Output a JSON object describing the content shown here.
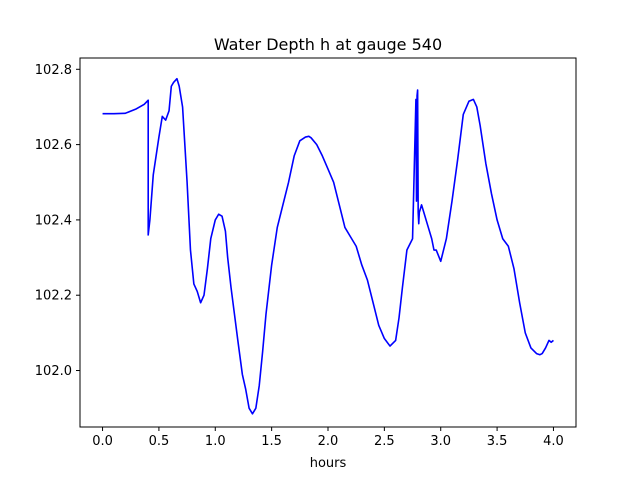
{
  "chart_data": {
    "type": "line",
    "title": "Water Depth h at gauge 540",
    "xlabel": "hours",
    "ylabel": "",
    "xlim": [
      -0.2,
      4.2
    ],
    "ylim": [
      101.85,
      102.83
    ],
    "xticks": [
      0.0,
      0.5,
      1.0,
      1.5,
      2.0,
      2.5,
      3.0,
      3.5,
      4.0
    ],
    "xtick_labels": [
      "0.0",
      "0.5",
      "1.0",
      "1.5",
      "2.0",
      "2.5",
      "3.0",
      "3.5",
      "4.0"
    ],
    "yticks": [
      102.0,
      102.2,
      102.4,
      102.6,
      102.8
    ],
    "ytick_labels": [
      "102.0",
      "102.2",
      "102.4",
      "102.6",
      "102.8"
    ],
    "grid": false,
    "line_color": "#0000ff",
    "series": [
      {
        "name": "",
        "x": [
          0.0,
          0.1,
          0.2,
          0.3,
          0.37,
          0.405,
          0.405,
          0.42,
          0.45,
          0.5,
          0.53,
          0.56,
          0.59,
          0.61,
          0.63,
          0.66,
          0.68,
          0.71,
          0.75,
          0.78,
          0.81,
          0.84,
          0.87,
          0.9,
          0.93,
          0.96,
          1.0,
          1.03,
          1.06,
          1.09,
          1.11,
          1.14,
          1.17,
          1.2,
          1.24,
          1.27,
          1.3,
          1.33,
          1.36,
          1.39,
          1.42,
          1.45,
          1.5,
          1.55,
          1.6,
          1.65,
          1.7,
          1.75,
          1.8,
          1.83,
          1.85,
          1.9,
          1.95,
          2.0,
          2.05,
          2.1,
          2.15,
          2.2,
          2.25,
          2.3,
          2.35,
          2.4,
          2.45,
          2.5,
          2.55,
          2.6,
          2.63,
          2.66,
          2.7,
          2.75,
          2.78,
          2.785,
          2.79,
          2.795,
          2.8,
          2.805,
          2.81,
          2.83,
          2.85,
          2.88,
          2.92,
          2.94,
          2.96,
          3.0,
          3.05,
          3.1,
          3.15,
          3.2,
          3.25,
          3.29,
          3.32,
          3.35,
          3.4,
          3.45,
          3.5,
          3.55,
          3.6,
          3.65,
          3.7,
          3.75,
          3.8,
          3.85,
          3.88,
          3.9,
          3.93,
          3.96,
          3.98,
          4.0
        ],
        "y": [
          102.682,
          102.682,
          102.683,
          102.695,
          102.707,
          102.718,
          102.36,
          102.4,
          102.52,
          102.62,
          102.675,
          102.665,
          102.69,
          102.755,
          102.765,
          102.775,
          102.755,
          102.7,
          102.5,
          102.32,
          102.23,
          102.21,
          102.18,
          102.2,
          102.27,
          102.35,
          102.4,
          102.415,
          102.41,
          102.37,
          102.3,
          102.22,
          102.15,
          102.08,
          101.99,
          101.95,
          101.9,
          101.885,
          101.9,
          101.96,
          102.05,
          102.15,
          102.28,
          102.38,
          102.44,
          102.5,
          102.57,
          102.61,
          102.62,
          102.622,
          102.618,
          102.6,
          102.57,
          102.535,
          102.5,
          102.44,
          102.38,
          102.355,
          102.33,
          102.28,
          102.24,
          102.18,
          102.12,
          102.085,
          102.065,
          102.08,
          102.14,
          102.22,
          102.32,
          102.35,
          102.72,
          102.45,
          102.73,
          102.745,
          102.42,
          102.39,
          102.42,
          102.44,
          102.42,
          102.39,
          102.35,
          102.32,
          102.32,
          102.29,
          102.35,
          102.45,
          102.56,
          102.68,
          102.715,
          102.72,
          102.7,
          102.65,
          102.55,
          102.47,
          102.4,
          102.35,
          102.33,
          102.27,
          102.18,
          102.1,
          102.06,
          102.045,
          102.042,
          102.045,
          102.06,
          102.08,
          102.075,
          102.08
        ]
      }
    ]
  }
}
